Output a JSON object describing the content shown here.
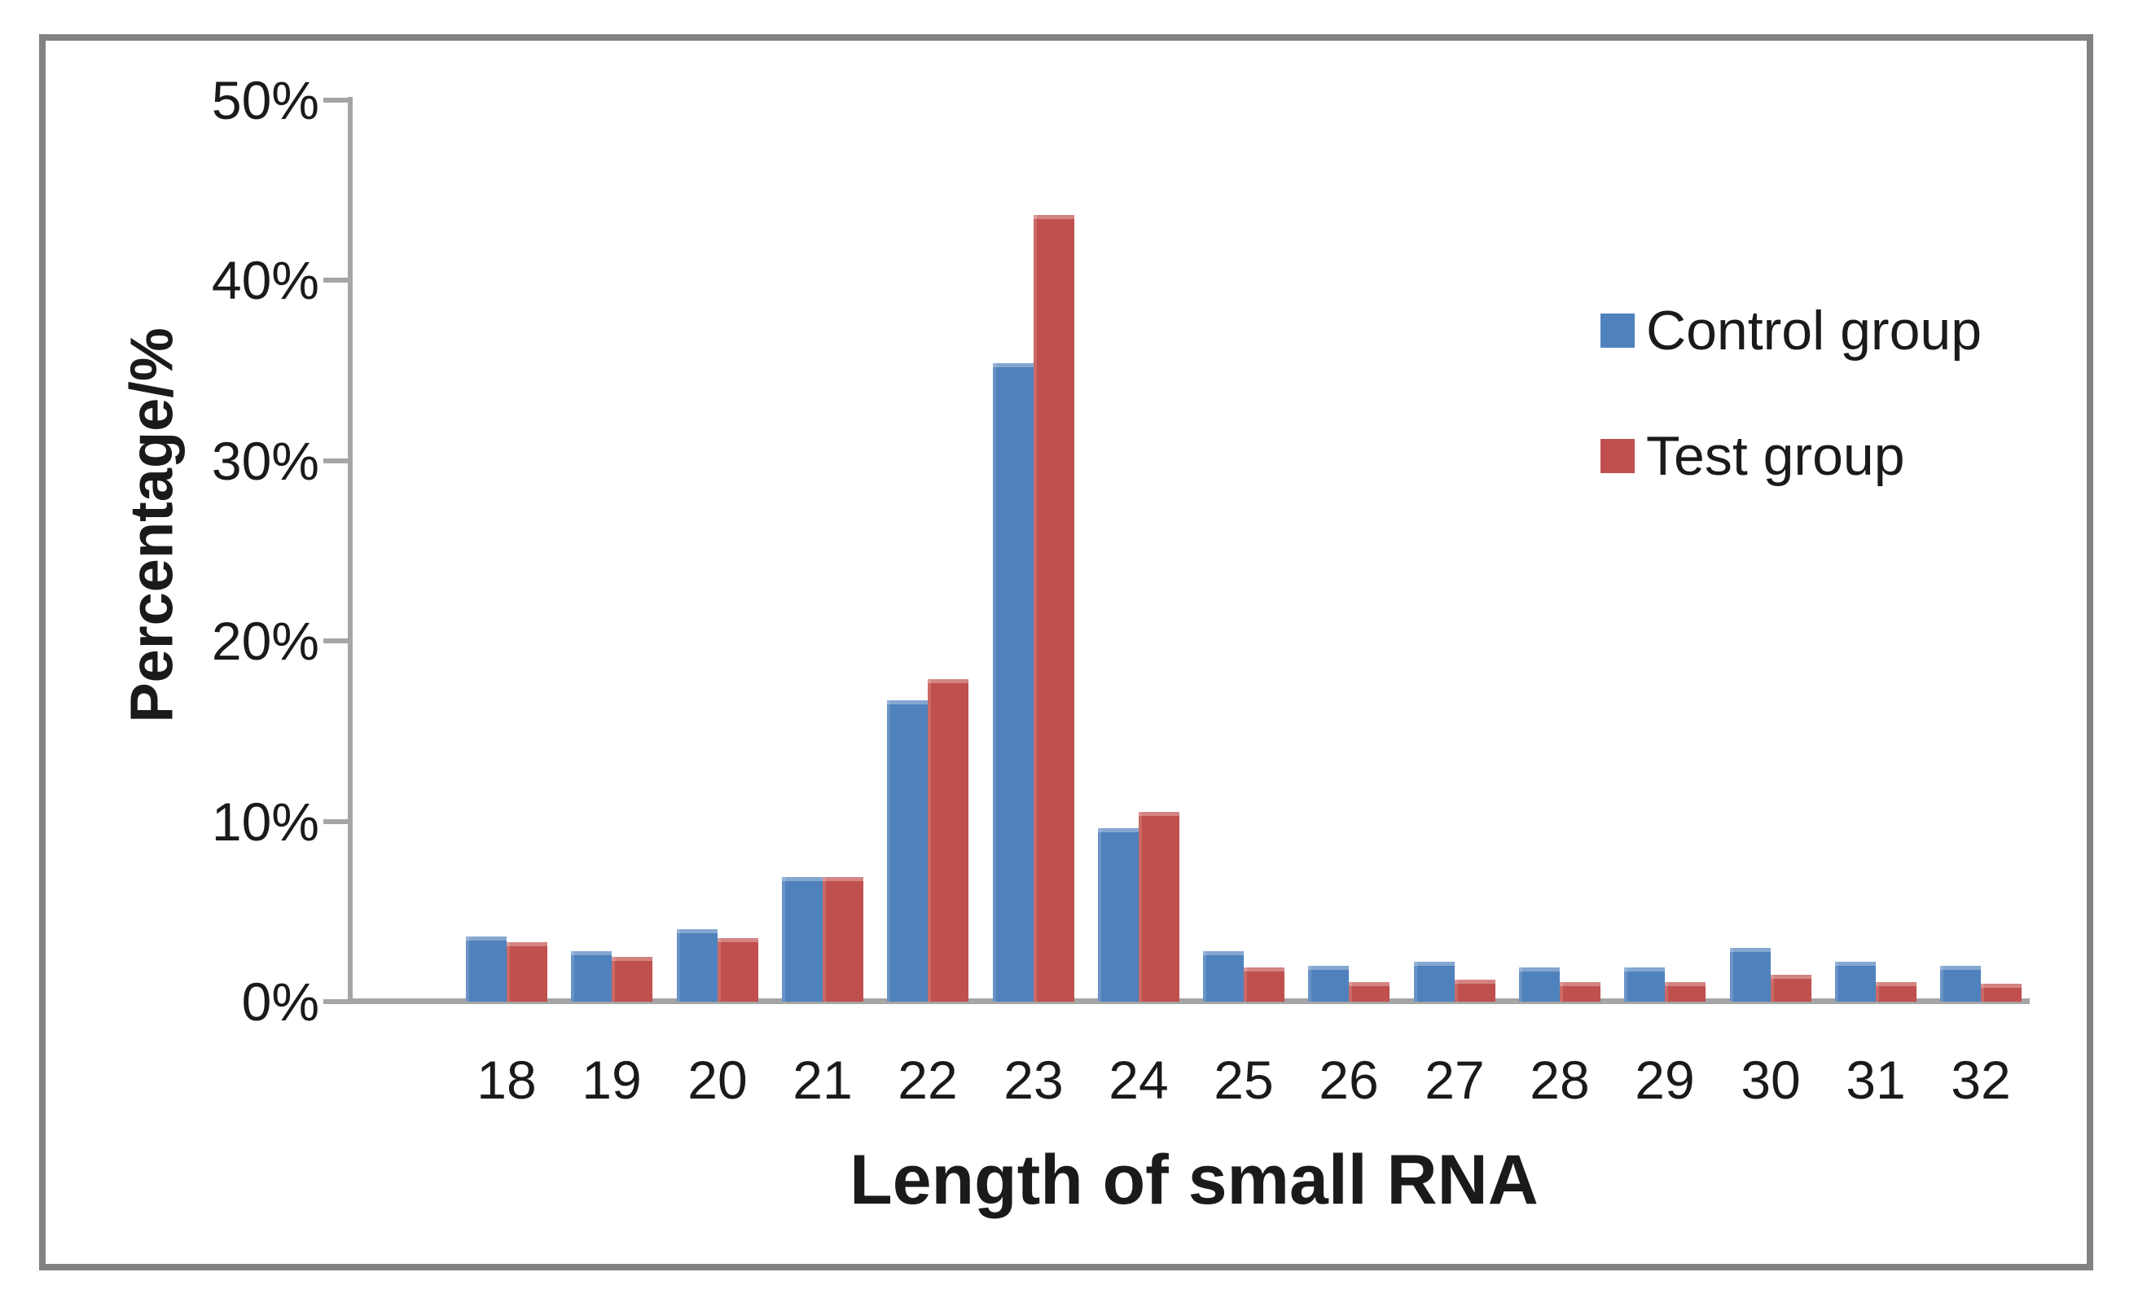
{
  "chart_data": {
    "type": "bar",
    "title": "",
    "xlabel": "Length of small RNA",
    "ylabel": "Percentage/%",
    "categories": [
      "18",
      "19",
      "20",
      "21",
      "22",
      "23",
      "24",
      "25",
      "26",
      "27",
      "28",
      "29",
      "30",
      "31",
      "32"
    ],
    "series": [
      {
        "name": "Control group",
        "color": "#4F81BD",
        "values": [
          3.6,
          2.8,
          4.0,
          6.9,
          16.7,
          35.4,
          9.6,
          2.8,
          2.0,
          2.2,
          1.9,
          1.9,
          3.0,
          2.2,
          2.0
        ]
      },
      {
        "name": "Test group",
        "color": "#C0504D",
        "values": [
          3.3,
          2.5,
          3.5,
          6.9,
          17.9,
          43.6,
          10.5,
          1.9,
          1.1,
          1.2,
          1.1,
          1.1,
          1.5,
          1.1,
          1.0
        ]
      }
    ],
    "ylim": [
      0,
      50
    ],
    "ytick_step": 10,
    "ytick_labels": [
      "0%",
      "10%",
      "20%",
      "30%",
      "40%",
      "50%"
    ],
    "grid": false,
    "legend_position": "upper-right-inside"
  },
  "colors": {
    "axis_gray": "#a5a5a5",
    "border_gray": "#828282",
    "control_blue": "#4F81BD",
    "test_red": "#C0504D"
  }
}
